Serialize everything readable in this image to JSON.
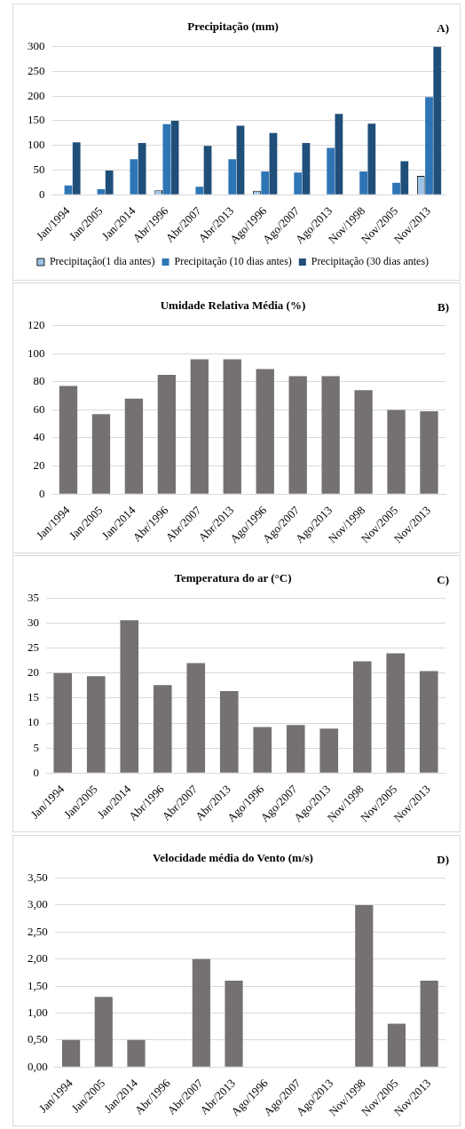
{
  "chart_data": [
    {
      "type": "bar",
      "title": "Precipitação (mm)",
      "annotations": [
        "A)"
      ],
      "categories": [
        "Jan/1994",
        "Jan/2005",
        "Jan/2014",
        "Abr/1996",
        "Abr/2007",
        "Abr/2013",
        "Ago/1996",
        "Ago/2007",
        "Ago/2013",
        "Nov/1998",
        "Nov/2005",
        "Nov/2013"
      ],
      "series": [
        {
          "name": "Precipitação(1 dia antes)",
          "color": "#9dc3e6",
          "values": [
            0,
            0,
            0,
            9,
            0,
            0,
            8,
            0,
            0,
            0,
            0,
            38
          ]
        },
        {
          "name": "Precipitação (10 dias antes)",
          "color": "#2e75b6",
          "values": [
            19,
            11,
            72,
            143,
            16,
            72,
            47,
            45,
            95,
            47,
            24,
            198
          ]
        },
        {
          "name": "Precipitação (30 dias antes)",
          "color": "#1f4e79",
          "values": [
            106,
            49,
            105,
            150,
            99,
            140,
            125,
            105,
            164,
            144,
            68,
            300
          ]
        }
      ],
      "ylim": [
        0,
        300
      ],
      "yticks": [
        0,
        50,
        100,
        150,
        200,
        250,
        300
      ],
      "grid": "y",
      "legend": "bottom"
    },
    {
      "type": "bar",
      "title": "Umidade Relativa Média (%)",
      "annotations": [
        "B)"
      ],
      "categories": [
        "Jan/1994",
        "Jan/2005",
        "Jan/2014",
        "Abr/1996",
        "Abr/2007",
        "Abr/2013",
        "Ago/1996",
        "Ago/2007",
        "Ago/2013",
        "Nov/1998",
        "Nov/2005",
        "Nov/2013"
      ],
      "values": [
        77,
        57,
        68,
        85,
        96,
        96,
        89,
        84,
        84,
        74,
        60,
        59
      ],
      "color": "#757171",
      "ylim": [
        0,
        120
      ],
      "yticks": [
        0,
        20,
        40,
        60,
        80,
        100,
        120
      ],
      "grid": "y"
    },
    {
      "type": "bar",
      "title": "Temperatura do ar (°C)",
      "annotations": [
        "C)"
      ],
      "categories": [
        "Jan/1994",
        "Jan/2005",
        "Jan/2014",
        "Abr/1996",
        "Abr/2007",
        "Abr/2013",
        "Ago/1996",
        "Ago/2007",
        "Ago/2013",
        "Nov/1998",
        "Nov/2005",
        "Nov/2013"
      ],
      "values": [
        20,
        19.4,
        30.6,
        17.6,
        22,
        16.4,
        9.2,
        9.6,
        8.9,
        22.4,
        24,
        20.4
      ],
      "color": "#757171",
      "ylim": [
        0,
        35
      ],
      "yticks": [
        0,
        5,
        10,
        15,
        20,
        25,
        30,
        35
      ],
      "grid": "y"
    },
    {
      "type": "bar",
      "title": "Velocidade média do Vento (m/s)",
      "annotations": [
        "D)"
      ],
      "categories": [
        "Jan/1994",
        "Jan/2005",
        "Jan/2014",
        "Abr/1996",
        "Abr/2007",
        "Abr/2013",
        "Ago/1996",
        "Ago/2007",
        "Ago/2013",
        "Nov/1998",
        "Nov/2005",
        "Nov/2013"
      ],
      "values": [
        0.5,
        1.3,
        0.5,
        0,
        2,
        1.6,
        0,
        0,
        0,
        3,
        0.8,
        1.6
      ],
      "color": "#757171",
      "ylim": [
        0,
        3.5
      ],
      "yticks": [
        {
          "value": 0,
          "label": "0,00"
        },
        {
          "value": 0.5,
          "label": "0,50"
        },
        {
          "value": 1,
          "label": "1,00"
        },
        {
          "value": 1.5,
          "label": "1,50"
        },
        {
          "value": 2,
          "label": "2,00"
        },
        {
          "value": 2.5,
          "label": "2,50"
        },
        {
          "value": 3,
          "label": "3,00"
        },
        {
          "value": 3.5,
          "label": "3,50"
        }
      ],
      "grid": "y"
    }
  ]
}
